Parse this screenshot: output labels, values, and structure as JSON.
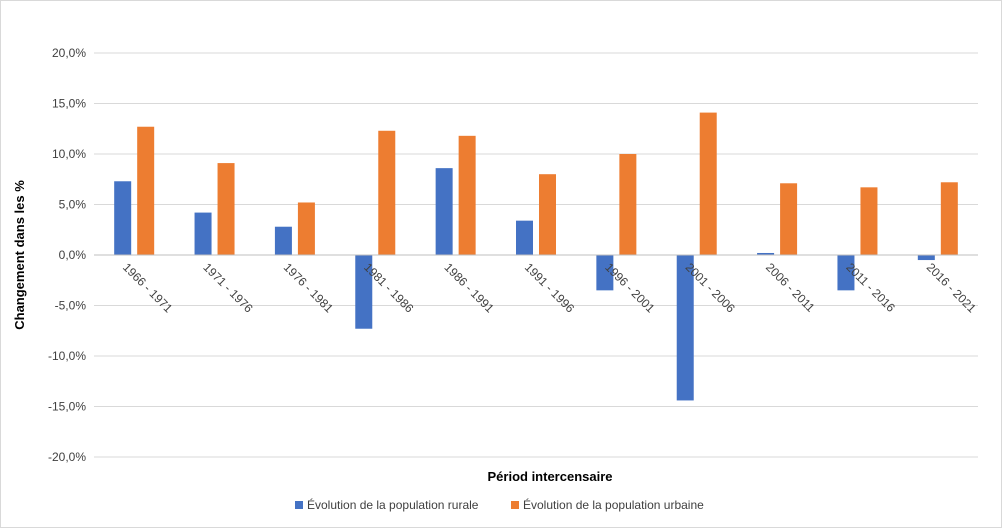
{
  "chart_data": {
    "type": "bar",
    "title": "",
    "xlabel": "Périod intercensaire",
    "ylabel": "Changement dans les %",
    "categories": [
      "1966 - 1971",
      "1971 - 1976",
      "1976 - 1981",
      "1981 - 1986",
      "1986 - 1991",
      "1991 - 1996",
      "1996 - 2001",
      "2001 - 2006",
      "2006 - 2011",
      "2011 - 2016",
      "2016 - 2021"
    ],
    "series": [
      {
        "name": "Évolution de la population rurale",
        "color": "#4472c4",
        "values": [
          7.3,
          4.2,
          2.8,
          -7.3,
          8.6,
          3.4,
          -3.5,
          -14.4,
          0.2,
          -3.5,
          -0.5
        ]
      },
      {
        "name": "Évolution de la population urbaine",
        "color": "#ed7d31",
        "values": [
          12.7,
          9.1,
          5.2,
          12.3,
          11.8,
          8.0,
          10.0,
          14.1,
          7.1,
          6.7,
          7.2
        ]
      }
    ],
    "ylim": [
      -20,
      20
    ],
    "ytick_step": 5,
    "ytick_labels": [
      "-20,0%",
      "-15,0%",
      "-10,0%",
      "-5,0%",
      "0,0%",
      "5,0%",
      "10,0%",
      "15,0%",
      "20,0%"
    ],
    "grid": true,
    "legend_position": "bottom"
  }
}
